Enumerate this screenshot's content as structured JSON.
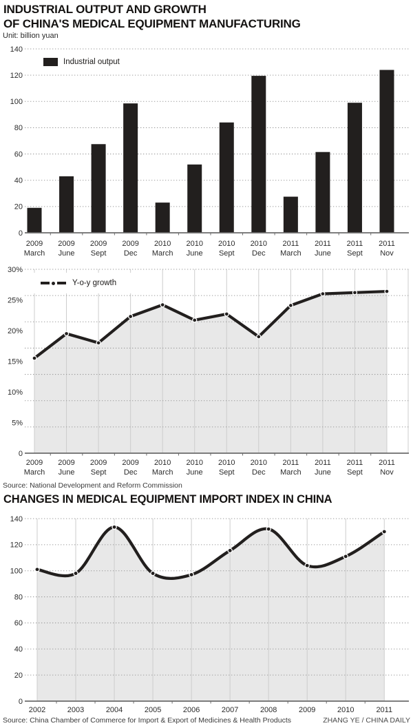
{
  "header": {
    "title_line1": "INDUSTRIAL OUTPUT AND GROWTH",
    "title_line2": "OF CHINA'S MEDICAL EQUIPMENT MANUFACTURING",
    "unit_label": "Unit: billion yuan"
  },
  "section2_title": "CHANGES IN MEDICAL EQUIPMENT IMPORT INDEX IN CHINA",
  "source1": "Source: National Development and Reform Commission",
  "source2": "Source: China Chamber of Commerce for Import & Export of Medicines & Health Products",
  "credit": "ZHANG YE / CHINA DAILY",
  "colors": {
    "ink": "#221f1e",
    "area_fill": "#e8e8e8",
    "grid_dotted": "#9a9a9a",
    "grid_vertical": "#cccccc",
    "baseline": "#6b6b6b"
  },
  "chart_data": [
    {
      "type": "bar",
      "title": "INDUSTRIAL OUTPUT AND GROWTH OF CHINA'S MEDICAL EQUIPMENT MANUFACTURING",
      "unit": "billion yuan",
      "legend": "Industrial output",
      "categories": [
        "2009 March",
        "2009 June",
        "2009 Sept",
        "2009 Dec",
        "2010 March",
        "2010 June",
        "2010 Sept",
        "2010 Dec",
        "2011 March",
        "2011 June",
        "2011 Sept",
        "2011 Nov"
      ],
      "values": [
        19,
        43,
        67.5,
        98.5,
        23,
        52,
        84,
        119.5,
        27.5,
        61.5,
        99,
        124
      ],
      "ylim": [
        0,
        140
      ],
      "ytick_step": 20,
      "grid": true,
      "legend_position": "top-left"
    },
    {
      "type": "line",
      "legend": "Y-o-y growth",
      "categories": [
        "2009 March",
        "2009 June",
        "2009 Sept",
        "2009 Dec",
        "2010 March",
        "2010 June",
        "2010 Sept",
        "2010 Dec",
        "2011 March",
        "2011 June",
        "2011 Sept",
        "2011 Nov"
      ],
      "values": [
        15.5,
        19.5,
        18.0,
        22.3,
        24.2,
        21.7,
        22.7,
        19.0,
        24.1,
        26.0,
        26.2,
        26.4
      ],
      "unit": "%",
      "ylim": [
        0,
        30
      ],
      "ytick_step": 5,
      "ytick_labels": [
        "30%",
        "25%",
        "20%",
        "15%",
        "10%",
        "5%",
        "0"
      ],
      "area_fill": true,
      "markers": true,
      "grid": true,
      "legend_position": "top-left"
    },
    {
      "type": "line",
      "title": "CHANGES IN MEDICAL EQUIPMENT IMPORT INDEX IN CHINA",
      "categories": [
        "2002",
        "2003",
        "2004",
        "2005",
        "2006",
        "2007",
        "2008",
        "2009",
        "2010",
        "2011"
      ],
      "values": [
        101,
        98,
        133.5,
        98,
        97,
        115.5,
        132,
        104,
        111,
        130
      ],
      "ylim": [
        0,
        140
      ],
      "ytick_step": 20,
      "smooth": true,
      "area_fill": true,
      "markers": true,
      "grid": true
    }
  ]
}
